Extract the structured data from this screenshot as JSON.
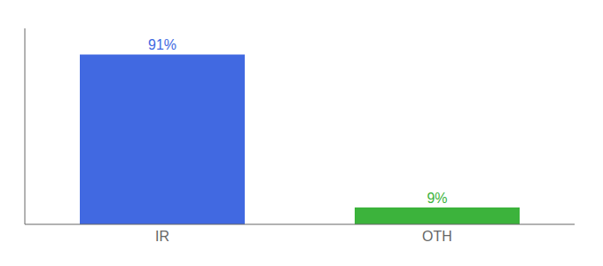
{
  "chart_data": {
    "type": "bar",
    "categories": [
      "IR",
      "OTH"
    ],
    "values": [
      91,
      9
    ],
    "value_labels": [
      "91%",
      "9%"
    ],
    "colors": [
      "#4169e1",
      "#3cb33c"
    ],
    "ylim": [
      0,
      105
    ],
    "data_labels": true,
    "tick_labels": "x",
    "grid": false
  }
}
